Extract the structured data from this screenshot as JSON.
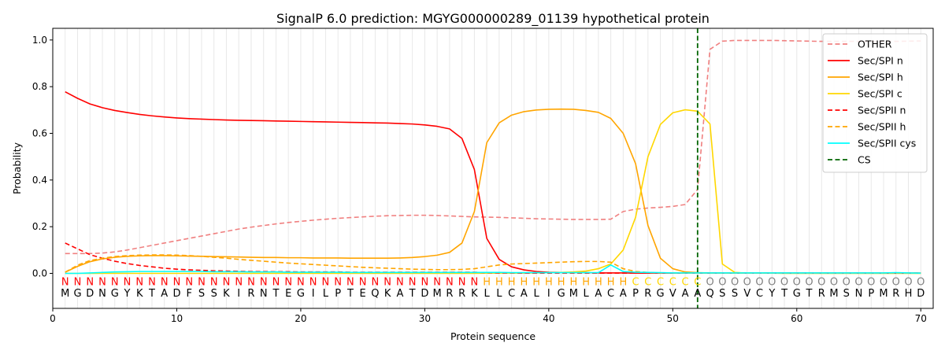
{
  "chart_data": {
    "type": "line",
    "title": "SignalP 6.0 prediction: MGYG000000289_01139 hypothetical protein",
    "xlabel": "Protein sequence",
    "ylabel": "Probability",
    "xlim": [
      0,
      71
    ],
    "ylim": [
      -0.15,
      1.05
    ],
    "xticks": [
      0,
      10,
      20,
      30,
      40,
      50,
      60,
      70
    ],
    "yticks": [
      0.0,
      0.2,
      0.4,
      0.6,
      0.8,
      1.0
    ],
    "grid": "vertical lines at each residue",
    "legend_position": "top-right",
    "sequence": [
      "M",
      "G",
      "D",
      "N",
      "G",
      "Y",
      "K",
      "T",
      "A",
      "D",
      "F",
      "S",
      "S",
      "K",
      "I",
      "R",
      "N",
      "T",
      "E",
      "G",
      "I",
      "L",
      "P",
      "T",
      "E",
      "Q",
      "K",
      "A",
      "T",
      "D",
      "M",
      "R",
      "R",
      "K",
      "L",
      "L",
      "C",
      "A",
      "L",
      "I",
      "G",
      "M",
      "L",
      "A",
      "C",
      "A",
      "P",
      "R",
      "G",
      "V",
      "A",
      "A",
      "Q",
      "S",
      "S",
      "V",
      "C",
      "Y",
      "T",
      "G",
      "T",
      "R",
      "M",
      "S",
      "N",
      "P",
      "M",
      "R",
      "H",
      "D"
    ],
    "region_labels": [
      "N",
      "N",
      "N",
      "N",
      "N",
      "N",
      "N",
      "N",
      "N",
      "N",
      "N",
      "N",
      "N",
      "N",
      "N",
      "N",
      "N",
      "N",
      "N",
      "N",
      "N",
      "N",
      "N",
      "N",
      "N",
      "N",
      "N",
      "N",
      "N",
      "N",
      "N",
      "N",
      "N",
      "N",
      "H",
      "H",
      "H",
      "H",
      "H",
      "H",
      "H",
      "H",
      "H",
      "H",
      "H",
      "H",
      "C",
      "C",
      "C",
      "C",
      "C",
      "C",
      "O",
      "O",
      "O",
      "O",
      "O",
      "O",
      "O",
      "O",
      "O",
      "O",
      "O",
      "O",
      "O",
      "O",
      "O",
      "O",
      "O",
      "O"
    ],
    "region_colors": {
      "N": "#ff0000",
      "H": "#ffa500",
      "C": "#ffd700",
      "O": "#808080"
    },
    "cleavage_site": 52,
    "series": [
      {
        "name": "OTHER",
        "color": "#f08080",
        "dash": "dashed",
        "values": [
          0.085,
          0.085,
          0.085,
          0.087,
          0.092,
          0.1,
          0.11,
          0.12,
          0.13,
          0.14,
          0.15,
          0.16,
          0.17,
          0.18,
          0.19,
          0.198,
          0.205,
          0.212,
          0.218,
          0.223,
          0.228,
          0.232,
          0.236,
          0.239,
          0.242,
          0.245,
          0.247,
          0.248,
          0.249,
          0.249,
          0.248,
          0.246,
          0.244,
          0.242,
          0.241,
          0.24,
          0.238,
          0.236,
          0.234,
          0.233,
          0.232,
          0.231,
          0.231,
          0.231,
          0.232,
          0.265,
          0.275,
          0.28,
          0.283,
          0.287,
          0.295,
          0.36,
          0.96,
          0.995,
          0.998,
          0.998,
          0.998,
          0.998,
          0.997,
          0.996,
          0.995,
          0.994,
          0.994,
          0.994,
          0.994,
          0.994,
          0.994,
          0.994,
          0.995,
          0.996
        ]
      },
      {
        "name": "Sec/SPI n",
        "color": "#ff0000",
        "dash": "solid",
        "values": [
          0.778,
          0.75,
          0.726,
          0.71,
          0.698,
          0.689,
          0.681,
          0.675,
          0.67,
          0.666,
          0.663,
          0.661,
          0.659,
          0.657,
          0.656,
          0.655,
          0.654,
          0.653,
          0.652,
          0.651,
          0.65,
          0.649,
          0.648,
          0.647,
          0.646,
          0.645,
          0.644,
          0.642,
          0.64,
          0.636,
          0.63,
          0.619,
          0.578,
          0.445,
          0.15,
          0.06,
          0.028,
          0.015,
          0.008,
          0.005,
          0.004,
          0.003,
          0.003,
          0.002,
          0.002,
          0.002,
          0.001,
          0.001,
          0.001,
          0.001,
          0.001,
          0.001,
          0.001,
          0.001,
          0.001,
          0.001,
          0.001,
          0.001,
          0.001,
          0.001,
          0.001,
          0.001,
          0.001,
          0.001,
          0.001,
          0.001,
          0.001,
          0.001,
          0.001,
          0.001
        ]
      },
      {
        "name": "Sec/SPI h",
        "color": "#ffa500",
        "dash": "solid",
        "values": [
          0.005,
          0.03,
          0.05,
          0.062,
          0.069,
          0.073,
          0.075,
          0.076,
          0.076,
          0.075,
          0.074,
          0.073,
          0.072,
          0.071,
          0.07,
          0.069,
          0.068,
          0.068,
          0.067,
          0.067,
          0.066,
          0.066,
          0.066,
          0.065,
          0.065,
          0.065,
          0.065,
          0.066,
          0.068,
          0.072,
          0.078,
          0.09,
          0.13,
          0.265,
          0.56,
          0.645,
          0.678,
          0.693,
          0.7,
          0.703,
          0.704,
          0.703,
          0.698,
          0.69,
          0.664,
          0.6,
          0.47,
          0.205,
          0.065,
          0.02,
          0.006,
          0.003,
          0.002,
          0.001,
          0.001,
          0.001,
          0.001,
          0.001,
          0.001,
          0.001,
          0.001,
          0.001,
          0.001,
          0.001,
          0.001,
          0.001,
          0.001,
          0.001,
          0.001,
          0.001
        ]
      },
      {
        "name": "Sec/SPI c",
        "color": "#ffd700",
        "dash": "solid",
        "values": [
          0.0,
          0.0,
          0.0,
          0.0,
          0.0,
          0.0,
          0.0,
          0.0,
          0.0,
          0.0,
          0.0,
          0.0,
          0.0,
          0.0,
          0.0,
          0.0,
          0.0,
          0.0,
          0.0,
          0.0,
          0.0,
          0.0,
          0.0,
          0.0,
          0.0,
          0.0,
          0.0,
          0.0,
          0.0,
          0.0,
          0.0,
          0.0,
          0.0,
          0.0,
          0.001,
          0.001,
          0.001,
          0.001,
          0.002,
          0.003,
          0.004,
          0.006,
          0.01,
          0.02,
          0.04,
          0.1,
          0.24,
          0.5,
          0.638,
          0.688,
          0.701,
          0.695,
          0.64,
          0.04,
          0.004,
          0.001,
          0.001,
          0.001,
          0.0,
          0.0,
          0.0,
          0.0,
          0.0,
          0.0,
          0.0,
          0.0,
          0.0,
          0.0,
          0.0,
          0.0
        ]
      },
      {
        "name": "Sec/SPII n",
        "color": "#ff0000",
        "dash": "dashed",
        "values": [
          0.13,
          0.105,
          0.08,
          0.065,
          0.052,
          0.042,
          0.034,
          0.028,
          0.022,
          0.018,
          0.015,
          0.013,
          0.011,
          0.01,
          0.009,
          0.008,
          0.008,
          0.007,
          0.007,
          0.006,
          0.006,
          0.006,
          0.006,
          0.005,
          0.005,
          0.005,
          0.005,
          0.005,
          0.005,
          0.005,
          0.005,
          0.005,
          0.005,
          0.005,
          0.003,
          0.002,
          0.002,
          0.001,
          0.001,
          0.001,
          0.001,
          0.001,
          0.001,
          0.001,
          0.001,
          0.001,
          0.001,
          0.001,
          0.001,
          0.001,
          0.001,
          0.001,
          0.001,
          0.001,
          0.001,
          0.001,
          0.001,
          0.001,
          0.001,
          0.001,
          0.001,
          0.001,
          0.001,
          0.001,
          0.001,
          0.001,
          0.001,
          0.001,
          0.001,
          0.001
        ]
      },
      {
        "name": "Sec/SPII h",
        "color": "#ffa500",
        "dash": "dashed",
        "values": [
          0.005,
          0.035,
          0.055,
          0.065,
          0.072,
          0.076,
          0.078,
          0.079,
          0.079,
          0.078,
          0.076,
          0.073,
          0.069,
          0.065,
          0.06,
          0.056,
          0.052,
          0.048,
          0.044,
          0.041,
          0.038,
          0.035,
          0.032,
          0.029,
          0.026,
          0.024,
          0.022,
          0.02,
          0.018,
          0.017,
          0.016,
          0.016,
          0.017,
          0.02,
          0.028,
          0.036,
          0.04,
          0.042,
          0.044,
          0.046,
          0.048,
          0.05,
          0.051,
          0.051,
          0.048,
          0.02,
          0.008,
          0.004,
          0.002,
          0.002,
          0.001,
          0.001,
          0.001,
          0.001,
          0.001,
          0.001,
          0.001,
          0.001,
          0.001,
          0.001,
          0.001,
          0.001,
          0.001,
          0.001,
          0.001,
          0.001,
          0.001,
          0.001,
          0.001,
          0.001
        ]
      },
      {
        "name": "Sec/SPII cys",
        "color": "#00ffff",
        "dash": "solid",
        "values": [
          0.0,
          0.0,
          0.002,
          0.004,
          0.006,
          0.007,
          0.008,
          0.008,
          0.008,
          0.008,
          0.008,
          0.008,
          0.007,
          0.007,
          0.007,
          0.006,
          0.006,
          0.006,
          0.005,
          0.005,
          0.005,
          0.005,
          0.005,
          0.004,
          0.004,
          0.004,
          0.004,
          0.004,
          0.004,
          0.004,
          0.004,
          0.004,
          0.004,
          0.004,
          0.004,
          0.004,
          0.003,
          0.003,
          0.003,
          0.003,
          0.003,
          0.003,
          0.003,
          0.003,
          0.036,
          0.008,
          0.005,
          0.004,
          0.003,
          0.002,
          0.002,
          0.002,
          0.002,
          0.002,
          0.002,
          0.002,
          0.002,
          0.002,
          0.002,
          0.002,
          0.002,
          0.002,
          0.002,
          0.002,
          0.002,
          0.002,
          0.002,
          0.003,
          0.002,
          0.001
        ]
      }
    ],
    "legend": [
      {
        "label": "OTHER",
        "color": "#f08080",
        "dash": "dashed"
      },
      {
        "label": "Sec/SPI n",
        "color": "#ff0000",
        "dash": "solid"
      },
      {
        "label": "Sec/SPI h",
        "color": "#ffa500",
        "dash": "solid"
      },
      {
        "label": "Sec/SPI c",
        "color": "#ffd700",
        "dash": "solid"
      },
      {
        "label": "Sec/SPII n",
        "color": "#ff0000",
        "dash": "dashed"
      },
      {
        "label": "Sec/SPII h",
        "color": "#ffa500",
        "dash": "dashed"
      },
      {
        "label": "Sec/SPII cys",
        "color": "#00ffff",
        "dash": "solid"
      },
      {
        "label": "CS",
        "color": "#006400",
        "dash": "dashed"
      }
    ]
  }
}
